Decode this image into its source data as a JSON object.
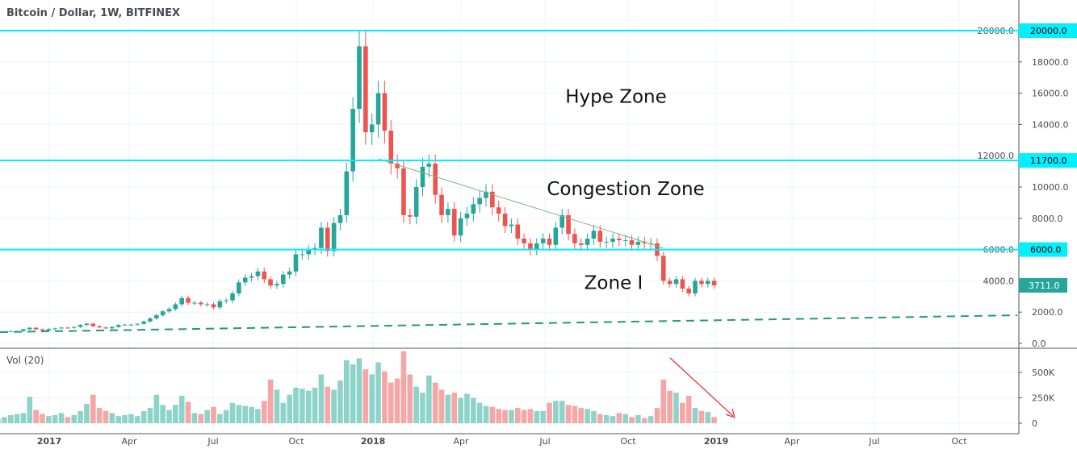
{
  "header": {
    "title": "Bitcoin / Dollar, 1W, BITFINEX"
  },
  "volume_pane": {
    "label": "Vol (20)"
  },
  "colors": {
    "up": "#26a69a",
    "down": "#ef5350",
    "vol_up": "#8ed3ca",
    "vol_down": "#f5a6a5",
    "level_line": "#00f0ff",
    "trendline": "#7fb87f",
    "dashed": "#1f9a7a",
    "arrow": "#e53935",
    "last_price_bg": "#26a69a"
  },
  "chart_data": {
    "type": "candlestick",
    "title": "Bitcoin / Dollar, 1W, BITFINEX",
    "interval": "1W",
    "start_week": "2016-11-07",
    "closes": [
      700,
      730,
      735,
      740,
      770,
      780,
      790,
      900,
      1000,
      900,
      830,
      920,
      960,
      1010,
      1000,
      1050,
      1180,
      1260,
      1100,
      1020,
      960,
      1050,
      1180,
      1200,
      1200,
      1250,
      1400,
      1600,
      1800,
      2050,
      2200,
      2500,
      2900,
      2600,
      2600,
      2500,
      2500,
      2300,
      2700,
      2750,
      3200,
      3900,
      4200,
      4300,
      4600,
      4100,
      3700,
      3800,
      4400,
      4600,
      5700,
      5700,
      6000,
      6100,
      7400,
      5900,
      7700,
      8200,
      11000,
      15000,
      19000,
      13500,
      14000,
      16000,
      13600,
      11500,
      11200,
      8200,
      8100,
      10000,
      11300,
      11500,
      9500,
      8200,
      8600,
      6900,
      8000,
      8300,
      8900,
      9300,
      9700,
      8700,
      8300,
      7500,
      7600,
      6700,
      6400,
      6000,
      6400,
      6700,
      6300,
      7400,
      8200,
      7000,
      6400,
      6300,
      6700,
      7200,
      6500,
      6500,
      6700,
      6600,
      6600,
      6300,
      6500,
      6400,
      6400,
      5600,
      4000,
      3800,
      4100,
      3500,
      3200,
      4000,
      3800,
      4000,
      3711
    ],
    "volumes_k": [
      60,
      40,
      50,
      45,
      60,
      80,
      90,
      100,
      260,
      130,
      90,
      70,
      80,
      100,
      60,
      80,
      120,
      190,
      280,
      150,
      120,
      100,
      70,
      80,
      90,
      70,
      120,
      150,
      280,
      180,
      130,
      180,
      270,
      210,
      100,
      90,
      130,
      160,
      90,
      130,
      200,
      180,
      170,
      160,
      140,
      220,
      430,
      330,
      200,
      280,
      350,
      340,
      320,
      350,
      480,
      360,
      330,
      420,
      620,
      580,
      640,
      530,
      480,
      600,
      510,
      400,
      440,
      710,
      480,
      360,
      300,
      470,
      400,
      330,
      280,
      300,
      250,
      290,
      250,
      200,
      170,
      160,
      140,
      130,
      130,
      150,
      130,
      140,
      120,
      120,
      200,
      220,
      220,
      180,
      170,
      150,
      140,
      120,
      90,
      80,
      70,
      100,
      90,
      60,
      80,
      50,
      70,
      150,
      430,
      320,
      300,
      200,
      270,
      150,
      120,
      110,
      60
    ],
    "price_axis": {
      "min": 0,
      "max": 20000,
      "ticks": [
        "0.0",
        "2000.0",
        "4000.0",
        "6000.0",
        "8000.0",
        "10000.0",
        "12000.0",
        "14000.0",
        "16000.0",
        "18000.0",
        "20000.0"
      ]
    },
    "volume_axis": {
      "ticks": [
        "0",
        "250K",
        "500K"
      ],
      "tick_values": [
        0,
        250,
        500
      ]
    },
    "time_ticks": [
      "2017",
      "Apr",
      "Jul",
      "Oct",
      "2018",
      "Apr",
      "Jul",
      "Oct",
      "2019",
      "Apr",
      "Jul",
      "Oct"
    ],
    "last_price": "3711.0",
    "levels": [
      {
        "price": 20000,
        "label": "20000.0"
      },
      {
        "price": 11700,
        "label": "11700.0"
      },
      {
        "price": 6000,
        "label": "6000.0"
      }
    ],
    "annotations": [
      {
        "text": "Hype Zone",
        "price": 15800
      },
      {
        "text": "Congestion Zone",
        "price": 9900
      },
      {
        "text": "Zone I",
        "price": 3900
      }
    ],
    "trendline": {
      "from": {
        "week_index": 63,
        "price": 11800
      },
      "to": {
        "week_index": 108,
        "price": 6100
      }
    },
    "support_dashed": {
      "from_price": 720,
      "to_price": 1800
    }
  }
}
